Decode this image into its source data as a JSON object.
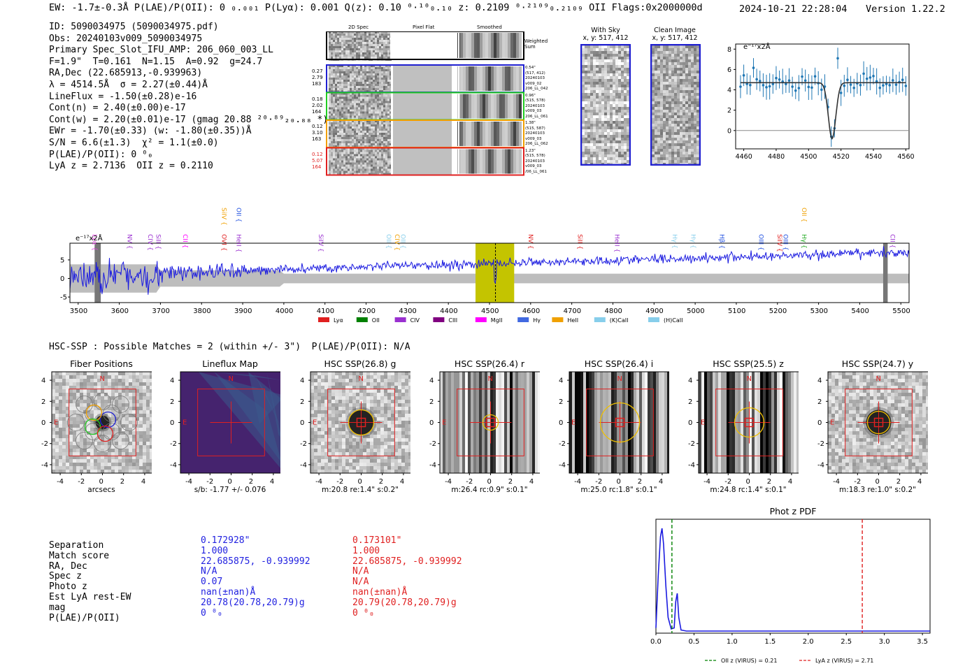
{
  "header": {
    "line1": "EW: -1.7±-0.3Å  P(LAE)/P(OII): 0 ₀.₀₀₁  P(Lyα): 0.001  Q(z): 0.10 ⁰·¹⁰₀.₁₀  z: 0.2109 ⁰·²¹⁰⁹₀.₂₁₀₉ OII   Flags:0x2000000d",
    "datetime": "2024-10-21 22:28:04",
    "version": "Version 1.22.2"
  },
  "info": {
    "id": "ID: 5090034975 (5090034975.pdf)",
    "obs": "Obs: 20240103v009_5090034975",
    "primary": "Primary Spec_Slot_IFU_AMP: 206_060_003_LL",
    "fwhm": "F=1.9\"  T=0.161  N=1.15  A=0.92  g=24.7",
    "radec": "RA,Dec (22.685913,-0.939963)",
    "lambda": "λ = 4514.5Å  σ = 2.27(±0.44)Å",
    "lineflux": "LineFlux = -1.50(±0.28)e-16",
    "contn": "Cont(n) = 2.40(±0.00)e-17",
    "contw": "Cont(w) = 2.20(±0.01)e-17 (gmag 20.88 ²⁰·⁸⁹₂₀.₈₈ *)",
    "ewr": "EWr = -1.70(±0.33) (w: -1.80(±0.35))Å",
    "sn": "S/N = 6.6(±1.3)  χ² = 1.1(±0.0)",
    "plae": "P(LAE)/P(OII): 0 ⁰₀",
    "lyaz": "LyA z = 2.7136  OII z = 0.2110"
  },
  "cutouts": {
    "col_labels": [
      "2D Spec",
      "Pixel Flat",
      "Smoothed"
    ],
    "weighted_sum": "Weighted Sum",
    "fibers": [
      {
        "left": [
          "0.27",
          "2.79",
          "183"
        ],
        "right": [
          "0.54\"",
          "(517, 412)",
          "20240103",
          "v009_02",
          "206_LL_042"
        ],
        "color": "#1f1fd0",
        "lcolor": "#000"
      },
      {
        "left": [
          "0.18",
          "2.02",
          "164"
        ],
        "right": [
          "0.96\"",
          "(515, 578)",
          "20240103",
          "v009_03",
          "206_LL_061"
        ],
        "color": "#22cc22",
        "lcolor": "#000"
      },
      {
        "left": [
          "0.12",
          "3.10",
          "163"
        ],
        "right": [
          "1.38\"",
          "(515, 587)",
          "20240103",
          "v009_03",
          "206_LL_062"
        ],
        "color": "#f0a000",
        "lcolor": "#000"
      },
      {
        "left": [
          "0.12",
          "5.07",
          "164"
        ],
        "right": [
          "1.23\"",
          "(515, 578)",
          "20240103",
          "v009_03",
          "/06_LL_061"
        ],
        "color": "#e02020",
        "lcolor": "#e02020"
      }
    ],
    "with_sky_title": "With Sky",
    "with_sky_coords": "x, y: 517, 412",
    "clean_title": "Clean Image",
    "clean_coords": "x, y: 517, 412"
  },
  "zoom_plot": {
    "unit": "e⁻¹⁷x2Å",
    "x_ticks": [
      "4460",
      "4480",
      "4500",
      "4520",
      "4540",
      "4560"
    ],
    "y_ticks": [
      "8",
      "6",
      "4",
      "2",
      "0"
    ]
  },
  "full_spectrum": {
    "unit": "e⁻¹⁷x2Å",
    "x_ticks": [
      "3500",
      "3600",
      "3700",
      "3800",
      "3900",
      "4000",
      "4100",
      "4200",
      "4300",
      "4400",
      "4500",
      "4600",
      "4700",
      "4800",
      "4900",
      "5000",
      "5100",
      "5200",
      "5300",
      "5400",
      "5500"
    ],
    "y_ticks": [
      "5",
      "0",
      "-5"
    ],
    "line_labels": [
      {
        "t": "Lyα",
        "w": 3530,
        "c": "#e040e0",
        "row": 0
      },
      {
        "t": "NV",
        "w": 3615,
        "c": "#9a30d0",
        "row": 0
      },
      {
        "t": "CIV",
        "w": 3665,
        "c": "#9a30d0",
        "row": 0
      },
      {
        "t": "SiII",
        "w": 3685,
        "c": "#9a30d0",
        "row": 0
      },
      {
        "t": "CII",
        "w": 3750,
        "c": "#ff00ff",
        "row": 0
      },
      {
        "t": "SiIV",
        "w": 3845,
        "c": "#f0a000",
        "row": 2
      },
      {
        "t": "OII",
        "w": 3880,
        "c": "#1f4fe0",
        "row": 2
      },
      {
        "t": "OVI",
        "w": 3845,
        "c": "#e02020",
        "row": 0
      },
      {
        "t": "HeII",
        "w": 3880,
        "c": "#9a30d0",
        "row": 0
      },
      {
        "t": "SiIV",
        "w": 4080,
        "c": "#9a30d0",
        "row": 0
      },
      {
        "t": "OII",
        "w": 4245,
        "c": "#87ceeb",
        "row": 0
      },
      {
        "t": "CIV",
        "w": 4265,
        "c": "#f0a000",
        "row": 0
      },
      {
        "t": "OII",
        "w": 4280,
        "c": "#87ceeb",
        "row": 0
      },
      {
        "t": "NV",
        "w": 4590,
        "c": "#e02020",
        "row": 0
      },
      {
        "t": "SiII",
        "w": 4710,
        "c": "#e02020",
        "row": 0
      },
      {
        "t": "HeII",
        "w": 4800,
        "c": "#9a30d0",
        "row": 0
      },
      {
        "t": "Hγ",
        "w": 4940,
        "c": "#87ceeb",
        "row": 0
      },
      {
        "t": "Hγ",
        "w": 4985,
        "c": "#87ceeb",
        "row": 0
      },
      {
        "t": "Hβ",
        "w": 5055,
        "c": "#1f4fe0",
        "row": 0
      },
      {
        "t": "OIII",
        "w": 5150,
        "c": "#1f4fe0",
        "row": 0
      },
      {
        "t": "SiIV",
        "w": 5195,
        "c": "#e02020",
        "row": 0
      },
      {
        "t": "OIII",
        "w": 5210,
        "c": "#1f4fe0",
        "row": 0
      },
      {
        "t": "Hγ",
        "w": 5255,
        "c": "#22aa22",
        "row": 0
      },
      {
        "t": "OII",
        "w": 5255,
        "c": "#f0a000",
        "row": 2
      },
      {
        "t": "CII",
        "w": 5470,
        "c": "#9a30d0",
        "row": 0
      }
    ],
    "legend": [
      {
        "t": "Lyα",
        "c": "#e02020"
      },
      {
        "t": "OII",
        "c": "#008000"
      },
      {
        "t": "CIV",
        "c": "#9a30d0"
      },
      {
        "t": "CIII",
        "c": "#800080"
      },
      {
        "t": "MgII",
        "c": "#ff00ff"
      },
      {
        "t": "Hγ",
        "c": "#4169e1"
      },
      {
        "t": "HeII",
        "c": "#f0a000"
      },
      {
        "t": "(K)CaII",
        "c": "#87ceeb"
      },
      {
        "t": "(H)CaII",
        "c": "#87ceeb"
      }
    ]
  },
  "hsc": {
    "title": "HSC-SSP : Possible Matches = 2 (within +/- 3\")  P(LAE)/P(OII): N/A",
    "panels": [
      {
        "title": "Fiber Positions",
        "caption": "arcsecs"
      },
      {
        "title": "Lineflux Map",
        "caption": "s/b: -1.77 +/- 0.076"
      },
      {
        "title": "HSC SSP(26.8) g",
        "caption": "m:20.8  re:1.4\"  s:0.2\""
      },
      {
        "title": "HSC SSP(26.4) r",
        "caption": "m:26.4  rc:0.9\"  s:0.1\""
      },
      {
        "title": "HSC SSP(26.4) i",
        "caption": "m:25.0  rc:1.8\"  s:0.1\""
      },
      {
        "title": "HSC SSP(25.5) z",
        "caption": "m:24.8  rc:1.4\"  s:0.1\""
      },
      {
        "title": "HSC SSP(24.7) y",
        "caption": "m:18.3  re:1.0\"  s:0.2\""
      }
    ],
    "ticks": [
      "4",
      "2",
      "0",
      "-2",
      "-4"
    ],
    "xticks": [
      "-4",
      "-2",
      "0",
      "2",
      "4"
    ],
    "n_label": "N",
    "e_label": "E"
  },
  "matches": {
    "labels": [
      "Separation",
      "Match score",
      "RA, Dec",
      "Spec z",
      "Photo z",
      "Est LyA rest-EW",
      "mag",
      "P(LAE)/P(OII)"
    ],
    "col1": [
      "0.172928\"",
      "1.000",
      "22.685875, -0.939992",
      "N/A",
      "0.07",
      "nan(±nan)Å",
      "20.78(20.78,20.79)g",
      "0 ⁰₀"
    ],
    "col2": [
      "0.173101\"",
      "1.000",
      "22.685875, -0.939992",
      "N/A",
      "N/A",
      "nan(±nan)Å",
      "20.79(20.78,20.79)g",
      "0 ⁰₀"
    ],
    "col1_color": "#1f1fe0",
    "col2_color": "#e02020"
  },
  "chart_data": {
    "type": "line",
    "title": "Phot z PDF",
    "xlabel": "",
    "ylabel": "",
    "xlim": [
      0,
      3.6
    ],
    "x_ticks": [
      "0.0",
      "0.5",
      "1.0",
      "1.5",
      "2.0",
      "2.5",
      "3.0",
      "3.5"
    ],
    "series": [
      {
        "name": "photz pdf",
        "x": [
          0.0,
          0.03,
          0.06,
          0.08,
          0.1,
          0.13,
          0.16,
          0.2,
          0.24,
          0.26,
          0.28,
          0.3,
          0.33,
          0.4,
          1.0,
          2.0,
          3.0,
          3.6
        ],
        "y": [
          0.05,
          0.55,
          0.92,
          1.0,
          0.85,
          0.45,
          0.15,
          0.04,
          0.05,
          0.3,
          0.38,
          0.15,
          0.03,
          0.02,
          0.02,
          0.02,
          0.02,
          0.02
        ]
      }
    ],
    "vlines": [
      {
        "x": 0.21,
        "label": "OII z (VIRUS) = 0.21",
        "color": "#008000"
      },
      {
        "x": 2.71,
        "label": "LyA z (VIRUS) = 2.71",
        "color": "#e02020"
      }
    ]
  }
}
